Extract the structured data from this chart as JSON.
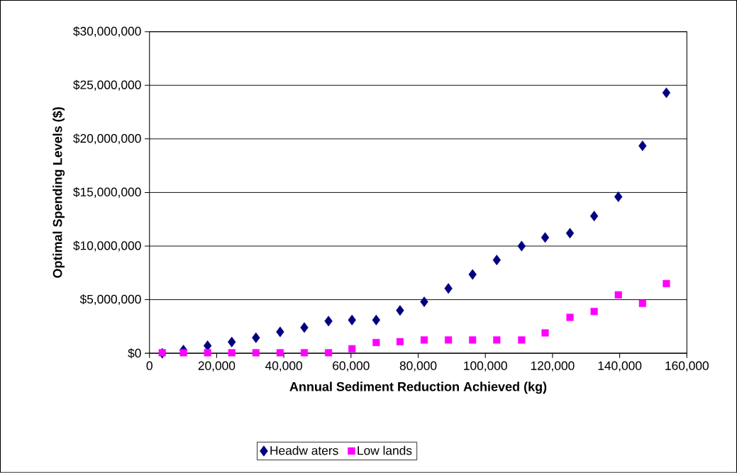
{
  "chart_data": {
    "type": "scatter",
    "xlabel": "Annual Sediment Reduction Achieved (kg)",
    "ylabel": "Optimal Spending Levels ($)",
    "xlim": [
      0,
      160000
    ],
    "ylim": [
      0,
      30000000
    ],
    "xticks": [
      0,
      {
        "value": 20000,
        "label": "20,000"
      },
      {
        "value": 40000,
        "label": "40,000"
      },
      {
        "value": 60000,
        "label": "60,000"
      },
      {
        "value": 80000,
        "label": "80,000"
      },
      {
        "value": 100000,
        "label": "100,000"
      },
      {
        "value": 120000,
        "label": "120,000"
      },
      {
        "value": 140000,
        "label": "140,000"
      },
      {
        "value": 160000,
        "label": "160,000"
      }
    ],
    "yticks": [
      {
        "value": 0,
        "label": "$0"
      },
      {
        "value": 5000000,
        "label": "$5,000,000"
      },
      {
        "value": 10000000,
        "label": "$10,000,000"
      },
      {
        "value": 15000000,
        "label": "$15,000,000"
      },
      {
        "value": 20000000,
        "label": "$20,000,000"
      },
      {
        "value": 25000000,
        "label": "$25,000,000"
      },
      {
        "value": 30000000,
        "label": "$30,000,000"
      }
    ],
    "x": [
      3800,
      10100,
      17300,
      24500,
      31700,
      38900,
      46100,
      53300,
      60300,
      67500,
      74600,
      81800,
      89000,
      96200,
      103400,
      110800,
      117800,
      125200,
      132400,
      139600,
      146800,
      153900
    ],
    "series": [
      {
        "name": "Headw aters",
        "color": "#000080",
        "marker": "diamond",
        "values": [
          0,
          300000,
          700000,
          1050000,
          1450000,
          2000000,
          2400000,
          3000000,
          3100000,
          3100000,
          4000000,
          4800000,
          6050000,
          7350000,
          8700000,
          10000000,
          10800000,
          11200000,
          12800000,
          14600000,
          19350000,
          24300000
        ]
      },
      {
        "name": "Low lands",
        "color": "#ff00ff",
        "marker": "square",
        "values": [
          50000,
          50000,
          50000,
          50000,
          50000,
          50000,
          50000,
          50000,
          420000,
          1000000,
          1080000,
          1240000,
          1240000,
          1240000,
          1240000,
          1240000,
          1900000,
          3350000,
          3900000,
          5450000,
          4650000,
          6500000
        ]
      }
    ],
    "grid": "y",
    "legend": "bottom"
  }
}
